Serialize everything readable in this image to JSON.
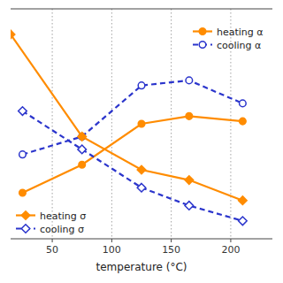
{
  "chart_data": {
    "type": "line",
    "xlabel": "temperature (°C)",
    "xlim": [
      15,
      235
    ],
    "ylim": [
      0.15,
      1.05
    ],
    "xticks": [
      50,
      100,
      150,
      200
    ],
    "yticks": [],
    "tick_labels": "x",
    "grid": true,
    "background_color": "#FFFFFF",
    "grid_color": "#999999",
    "series": [
      {
        "name": "heating α",
        "color": "#FF8C00",
        "marker": "circle",
        "line_style": "solid",
        "legend": "upper right",
        "x": [
          25,
          75,
          125,
          165,
          210
        ],
        "values": [
          0.33,
          0.44,
          0.6,
          0.63,
          0.61
        ]
      },
      {
        "name": "cooling α",
        "color": "#2B35CC",
        "marker": "open-circle",
        "line_style": "dashed",
        "legend": "upper right",
        "x": [
          25,
          75,
          125,
          165,
          210
        ],
        "values": [
          0.48,
          0.55,
          0.75,
          0.77,
          0.68
        ]
      },
      {
        "name": "heating σ",
        "color": "#FF8C00",
        "marker": "diamond",
        "line_style": "solid",
        "legend": "lower left",
        "x": [
          15,
          75,
          125,
          165,
          210
        ],
        "values": [
          0.95,
          0.55,
          0.42,
          0.38,
          0.3
        ]
      },
      {
        "name": "cooling σ",
        "color": "#2B35CC",
        "marker": "open-diamond",
        "line_style": "dashed",
        "legend": "lower left",
        "x": [
          25,
          75,
          125,
          165,
          210
        ],
        "values": [
          0.65,
          0.5,
          0.35,
          0.28,
          0.22
        ]
      }
    ]
  }
}
